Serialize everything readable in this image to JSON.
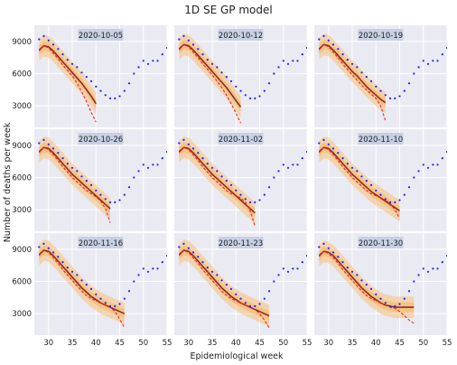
{
  "chart_data": {
    "type": "line",
    "title": "1D SE GP model",
    "xlabel": "Epidemiological week",
    "ylabel": "Number of deaths per week",
    "xlim": [
      27,
      55
    ],
    "ylim": [
      1000,
      10500
    ],
    "xticks": [
      30,
      35,
      40,
      45,
      50,
      55
    ],
    "yticks": [
      3000,
      6000,
      9000
    ],
    "grid": true,
    "colors": {
      "panel_bg": "#eaeaf2",
      "grid": "#ffffff",
      "observed": "#1f1fff",
      "estimate": "#8b2a2a",
      "band": "#f5c07a",
      "forecast": "#ff1f1f",
      "label_box": "#c8d0e4"
    },
    "observed_weekly_deaths": {
      "x": [
        28,
        29,
        30,
        31,
        32,
        33,
        34,
        35,
        36,
        37,
        38,
        39,
        40,
        41,
        42,
        43,
        44,
        45,
        46,
        47,
        48,
        49,
        50,
        51,
        52,
        53,
        54,
        55
      ],
      "y": [
        9200,
        9500,
        9100,
        8700,
        8300,
        7800,
        7300,
        6900,
        6600,
        6100,
        5700,
        5300,
        4800,
        4400,
        4000,
        3700,
        3700,
        3900,
        4400,
        5100,
        6000,
        6600,
        7200,
        6900,
        7200,
        7200,
        7800,
        8400
      ]
    },
    "panels": [
      {
        "label": "2020-10-05",
        "end": 40,
        "fit": [
          8200,
          8600,
          8500,
          8100,
          7600,
          7100,
          6600,
          6100,
          5600,
          5100,
          4500,
          3900,
          3200
        ],
        "forecast": [
          8100,
          8600,
          8400,
          7900,
          7400,
          6800,
          6300,
          5800,
          5100,
          4300,
          3400,
          2400,
          1500
        ]
      },
      {
        "label": "2020-10-12",
        "end": 41,
        "fit": [
          8300,
          8700,
          8600,
          8200,
          7700,
          7200,
          6700,
          6200,
          5700,
          5200,
          4700,
          4100,
          3500,
          2900
        ],
        "forecast": [
          8200,
          8700,
          8500,
          8000,
          7500,
          6900,
          6400,
          5900,
          5300,
          4700,
          4000,
          3200,
          2300,
          1400
        ]
      },
      {
        "label": "2020-10-19",
        "end": 42,
        "fit": [
          8300,
          8700,
          8600,
          8200,
          7700,
          7200,
          6700,
          6200,
          5800,
          5300,
          4800,
          4400,
          4000,
          3600,
          3300
        ],
        "forecast": [
          8200,
          8700,
          8500,
          8000,
          7500,
          6900,
          6400,
          5900,
          5400,
          4900,
          4500,
          4100,
          3700,
          3000,
          1600
        ]
      },
      {
        "label": "2020-10-26",
        "end": 43,
        "fit": [
          8400,
          8800,
          8700,
          8300,
          7800,
          7300,
          6800,
          6300,
          5900,
          5500,
          5100,
          4700,
          4300,
          3900,
          3500,
          3100
        ],
        "forecast": [
          8300,
          8800,
          8600,
          8100,
          7600,
          7000,
          6500,
          6000,
          5600,
          5200,
          4800,
          4500,
          4200,
          3800,
          3100,
          1800
        ]
      },
      {
        "label": "2020-11-02",
        "end": 44,
        "fit": [
          8400,
          8800,
          8700,
          8300,
          7800,
          7300,
          6800,
          6300,
          5900,
          5500,
          5100,
          4700,
          4300,
          3900,
          3500,
          3100,
          2700
        ],
        "forecast": [
          8300,
          8800,
          8600,
          8100,
          7600,
          7000,
          6500,
          6000,
          5600,
          5200,
          4800,
          4500,
          4300,
          4100,
          3700,
          2900,
          1500
        ]
      },
      {
        "label": "2020-11-10",
        "end": 45,
        "fit": [
          8400,
          8800,
          8700,
          8300,
          7800,
          7300,
          6800,
          6300,
          5900,
          5500,
          5100,
          4700,
          4400,
          4100,
          3800,
          3500,
          3200,
          2900
        ],
        "forecast": [
          8300,
          8800,
          8600,
          8100,
          7600,
          7000,
          6500,
          6000,
          5600,
          5200,
          4800,
          4500,
          4300,
          4100,
          3900,
          3600,
          3000,
          2200
        ]
      },
      {
        "label": "2020-11-16",
        "end": 46,
        "fit": [
          8500,
          8900,
          8800,
          8400,
          7900,
          7400,
          6900,
          6400,
          5900,
          5400,
          5000,
          4600,
          4300,
          4000,
          3800,
          3600,
          3400,
          3200,
          3000
        ],
        "forecast": [
          8400,
          8900,
          8700,
          8200,
          7700,
          7100,
          6600,
          6100,
          5600,
          5100,
          4700,
          4400,
          4200,
          4000,
          3800,
          3600,
          3200,
          2500,
          1700
        ]
      },
      {
        "label": "2020-11-23",
        "end": 47,
        "fit": [
          8500,
          8900,
          8800,
          8400,
          7900,
          7400,
          6900,
          6400,
          5900,
          5400,
          5000,
          4600,
          4300,
          4000,
          3800,
          3600,
          3400,
          3200,
          3000,
          2800
        ],
        "forecast": [
          8400,
          8900,
          8700,
          8200,
          7700,
          7100,
          6600,
          6100,
          5600,
          5100,
          4700,
          4400,
          4200,
          4000,
          3800,
          3600,
          3400,
          3000,
          2400,
          1700
        ]
      },
      {
        "label": "2020-11-30",
        "end": 48,
        "fit": [
          8400,
          8800,
          8700,
          8400,
          7900,
          7400,
          6900,
          6400,
          5900,
          5400,
          5000,
          4600,
          4300,
          4000,
          3800,
          3700,
          3600,
          3600,
          3600,
          3600,
          3600
        ],
        "forecast": [
          8300,
          8800,
          8600,
          8200,
          7700,
          7100,
          6600,
          6100,
          5600,
          5100,
          4700,
          4400,
          4200,
          4000,
          3800,
          3600,
          3500,
          3200,
          2800,
          2400,
          2100
        ]
      }
    ]
  }
}
